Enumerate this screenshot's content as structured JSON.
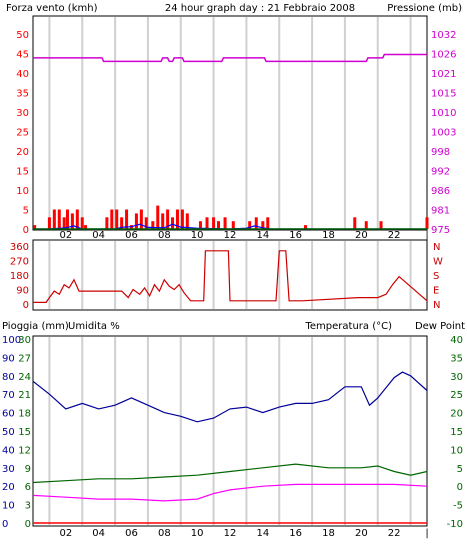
{
  "title": "24 hour graph day : 21 Febbraio 2008",
  "colors": {
    "wind": "#ff0000",
    "pressure": "#d000d0",
    "direction": "#cc0000",
    "rain": "#ff0000",
    "humidity": "#000099",
    "temperature": "#006600",
    "dew": "#ff00ff",
    "gust": "#0000ff",
    "grid": "#d0d0d0"
  },
  "x_ticks": [
    "02",
    "04",
    "06",
    "08",
    "10",
    "12",
    "14",
    "16",
    "18",
    "20",
    "22",
    "|"
  ],
  "chart_data": [
    {
      "type": "bar",
      "label_left": "Forza vento (kmh)",
      "label_right": "Pressione (mb)",
      "left_ticks": [
        "50",
        "45",
        "40",
        "35",
        "30",
        "25",
        "20",
        "15",
        "10",
        "5",
        "0"
      ],
      "right_ticks": [
        "1032",
        "1026",
        "1021",
        "1015",
        "1010",
        "1003",
        "998",
        "992",
        "986",
        "981",
        "975"
      ],
      "ylim_left": [
        0,
        50
      ],
      "ylim_right": [
        975,
        1032
      ],
      "wind_bars": [
        {
          "hour": 0.1,
          "value": 1
        },
        {
          "hour": 1.0,
          "value": 3
        },
        {
          "hour": 1.3,
          "value": 5
        },
        {
          "hour": 1.6,
          "value": 5
        },
        {
          "hour": 1.9,
          "value": 3
        },
        {
          "hour": 2.1,
          "value": 5
        },
        {
          "hour": 2.4,
          "value": 4
        },
        {
          "hour": 2.7,
          "value": 5
        },
        {
          "hour": 3.0,
          "value": 3
        },
        {
          "hour": 3.2,
          "value": 1
        },
        {
          "hour": 4.5,
          "value": 3
        },
        {
          "hour": 4.8,
          "value": 5
        },
        {
          "hour": 5.1,
          "value": 5
        },
        {
          "hour": 5.4,
          "value": 3
        },
        {
          "hour": 5.7,
          "value": 5
        },
        {
          "hour": 6.0,
          "value": 1
        },
        {
          "hour": 6.3,
          "value": 4
        },
        {
          "hour": 6.6,
          "value": 5
        },
        {
          "hour": 6.9,
          "value": 3
        },
        {
          "hour": 7.3,
          "value": 2
        },
        {
          "hour": 7.6,
          "value": 6
        },
        {
          "hour": 7.9,
          "value": 4
        },
        {
          "hour": 8.2,
          "value": 5
        },
        {
          "hour": 8.5,
          "value": 3
        },
        {
          "hour": 8.8,
          "value": 5
        },
        {
          "hour": 9.1,
          "value": 5
        },
        {
          "hour": 9.4,
          "value": 4
        },
        {
          "hour": 10.2,
          "value": 2
        },
        {
          "hour": 10.6,
          "value": 3
        },
        {
          "hour": 11.0,
          "value": 3
        },
        {
          "hour": 11.3,
          "value": 2
        },
        {
          "hour": 11.7,
          "value": 3
        },
        {
          "hour": 12.2,
          "value": 2
        },
        {
          "hour": 13.2,
          "value": 2
        },
        {
          "hour": 13.6,
          "value": 3
        },
        {
          "hour": 14.0,
          "value": 2
        },
        {
          "hour": 14.3,
          "value": 3
        },
        {
          "hour": 16.6,
          "value": 1
        },
        {
          "hour": 19.6,
          "value": 3
        },
        {
          "hour": 20.3,
          "value": 2
        },
        {
          "hour": 21.2,
          "value": 2
        },
        {
          "hour": 24.0,
          "value": 3
        }
      ],
      "gust_line": {
        "x": [
          0,
          1,
          2,
          2.5,
          3,
          4,
          5,
          5.5,
          6,
          6.5,
          7,
          8,
          8.5,
          9,
          10,
          12,
          13,
          13.5,
          14,
          14.5,
          15,
          18,
          20,
          22,
          24
        ],
        "y": [
          0,
          0,
          0.3,
          0.8,
          0,
          0,
          0,
          0.5,
          0.6,
          1.2,
          0.4,
          0.3,
          1.2,
          0.5,
          0.2,
          0,
          0.2,
          0.8,
          0.3,
          0,
          0,
          0,
          0,
          0,
          0
        ]
      },
      "pressure": {
        "x": [
          0,
          4.2,
          4.3,
          7.8,
          7.9,
          8.2,
          8.3,
          8.5,
          8.6,
          9.1,
          9.2,
          11.5,
          11.6,
          14.1,
          14.2,
          20.3,
          20.4,
          21.3,
          21.4,
          24
        ],
        "y": [
          1025,
          1025,
          1024,
          1024,
          1025,
          1025,
          1024,
          1024,
          1025,
          1025,
          1024,
          1024,
          1025,
          1025,
          1024,
          1024,
          1025,
          1025,
          1026,
          1026
        ]
      }
    },
    {
      "type": "line",
      "label_right_letters": [
        "N",
        "W",
        "S",
        "E",
        "N"
      ],
      "left_ticks": [
        "360",
        "270",
        "180",
        "90",
        "0"
      ],
      "ylim": [
        0,
        360
      ],
      "direction": {
        "x": [
          0,
          0.8,
          1,
          1.3,
          1.6,
          1.9,
          2.2,
          2.5,
          2.8,
          3.3,
          5.4,
          5.8,
          6.1,
          6.5,
          6.8,
          7.1,
          7.4,
          7.7,
          8.0,
          8.3,
          8.6,
          8.9,
          9.2,
          9.6,
          10.0,
          10.4,
          10.5,
          11.9,
          12.0,
          12.6,
          14.8,
          15.0,
          15.4,
          15.6,
          16.3,
          16.4,
          19.8,
          20.2,
          21.0,
          21.5,
          21.9,
          22.3,
          24
        ],
        "y": [
          10,
          10,
          40,
          80,
          60,
          120,
          100,
          150,
          80,
          80,
          80,
          40,
          90,
          60,
          100,
          50,
          120,
          80,
          150,
          110,
          90,
          120,
          70,
          20,
          20,
          20,
          330,
          330,
          20,
          20,
          20,
          330,
          330,
          20,
          20,
          20,
          40,
          40,
          40,
          60,
          120,
          170,
          20
        ]
      }
    },
    {
      "type": "line",
      "label_rain": "Pioggia (mm)",
      "label_humidity": "Umidita %",
      "label_temperature": "Temperatura (°C)",
      "label_dew": "Dew Point",
      "left_ticks_rain": [
        "100",
        "90",
        "80",
        "70",
        "60",
        "50",
        "40",
        "30",
        "20",
        "10",
        "0"
      ],
      "left_ticks_temp": [
        "30",
        "27",
        "24",
        "21",
        "18",
        "15",
        "12",
        "9",
        "6",
        "3",
        "0"
      ],
      "right_ticks": [
        "40",
        "35",
        "30",
        "25",
        "20",
        "15",
        "10",
        "5",
        "0",
        "-5",
        "-10"
      ],
      "humidity": {
        "x": [
          0,
          1,
          2,
          3,
          4,
          5,
          6,
          7,
          8,
          9,
          10,
          11,
          12,
          13,
          14,
          15,
          16,
          17,
          18,
          19,
          20,
          20.5,
          21,
          22,
          22.5,
          23,
          24
        ],
        "y": [
          77,
          70,
          62,
          65,
          62,
          64,
          68,
          64,
          60,
          58,
          55,
          57,
          62,
          63,
          60,
          63,
          65,
          65,
          67,
          74,
          74,
          64,
          68,
          79,
          82,
          80,
          72
        ]
      },
      "temperature": {
        "x": [
          0,
          2,
          4,
          6,
          8,
          10,
          12,
          14,
          16,
          18,
          20,
          21,
          22,
          23,
          24
        ],
        "y": [
          1,
          1.5,
          2,
          2,
          2.5,
          3,
          4,
          5,
          6,
          5,
          5,
          5.5,
          4,
          3,
          4
        ]
      },
      "dew_point": {
        "x": [
          0,
          2,
          4,
          6,
          8,
          10,
          11,
          12,
          14,
          16,
          18,
          20,
          22,
          24
        ],
        "y": [
          -2.5,
          -3,
          -3.5,
          -3.5,
          -4,
          -3.5,
          -2,
          -1,
          0,
          0.5,
          0.5,
          0.5,
          0.5,
          0
        ]
      },
      "rain": {
        "x": [
          0,
          24
        ],
        "y": [
          0,
          0
        ]
      }
    }
  ]
}
